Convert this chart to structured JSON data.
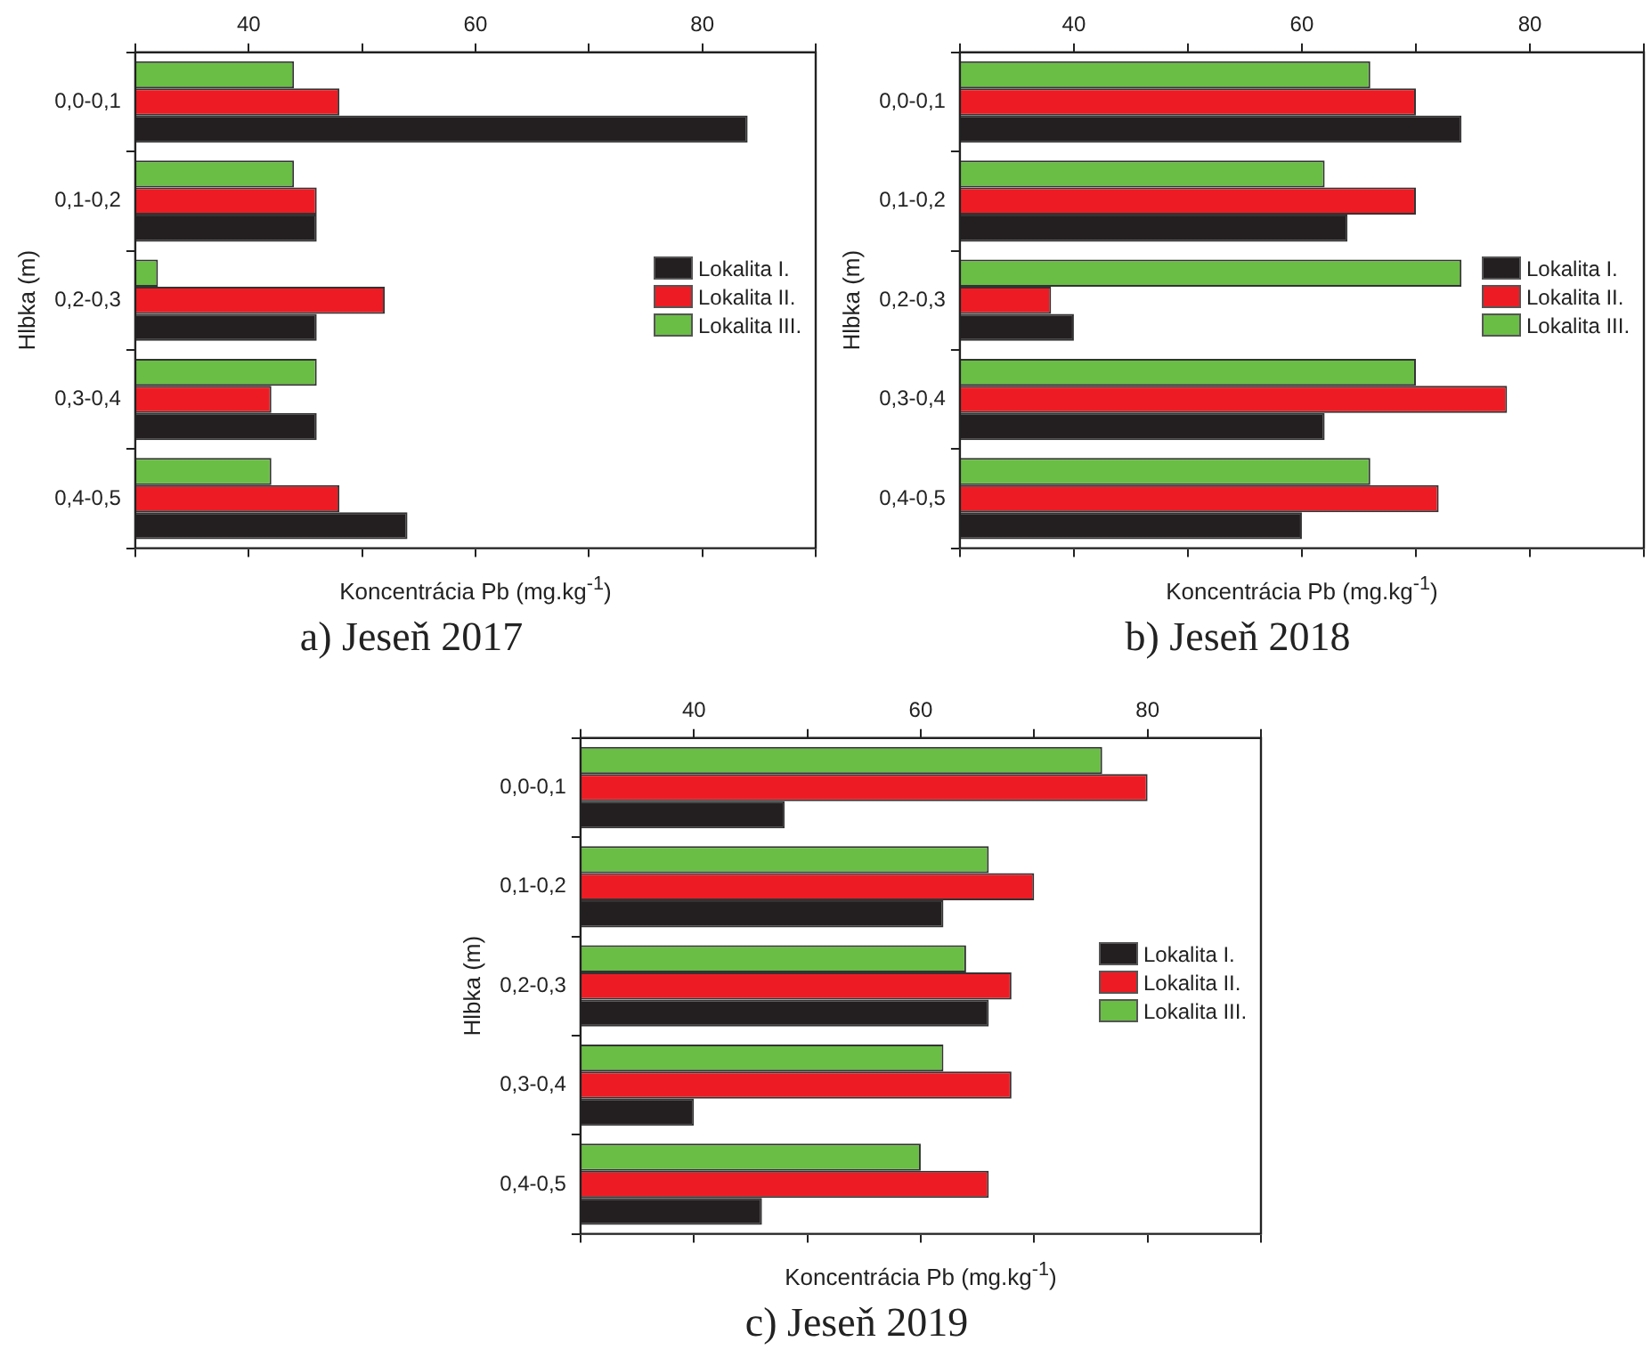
{
  "chart_data": [
    {
      "type": "bar",
      "orientation": "horizontal",
      "title": "a) Jeseň 2017",
      "xlabel": "Koncentrácia Pb (mg.kg$^{-1}$)",
      "ylabel": "Hlbka (m)",
      "categories": [
        "0,0-0,1",
        "0,1-0,2",
        "0,2-0,3",
        "0,3-0,4",
        "0,4-0,5"
      ],
      "series": [
        {
          "name": "Lokalita I.",
          "color": "#231f20",
          "values": [
            84,
            46,
            46,
            46,
            54
          ]
        },
        {
          "name": "Lokalita II.",
          "color": "#ed1c24",
          "values": [
            48,
            46,
            52,
            42,
            48
          ]
        },
        {
          "name": "Lokalita III.",
          "color": "#6abd45",
          "values": [
            44,
            44,
            32,
            46,
            42
          ]
        }
      ],
      "xlim": [
        30,
        90
      ],
      "xticks": [
        {
          "value": 30,
          "label": null
        },
        40,
        {
          "value": 50,
          "label": null
        },
        60,
        {
          "value": 70,
          "label": null
        },
        80,
        {
          "value": 90,
          "label": null
        }
      ],
      "grid": false,
      "legend": "right"
    },
    {
      "type": "bar",
      "orientation": "horizontal",
      "title": "b) Jeseň 2018",
      "xlabel": "Koncentrácia Pb (mg.kg$^{-1}$)",
      "ylabel": "Hlbka (m)",
      "categories": [
        "0,0-0,1",
        "0,1-0,2",
        "0,2-0,3",
        "0,3-0,4",
        "0,4-0,5"
      ],
      "series": [
        {
          "name": "Lokalita I.",
          "color": "#231f20",
          "values": [
            74,
            64,
            40,
            62,
            60
          ]
        },
        {
          "name": "Lokalita II.",
          "color": "#ed1c24",
          "values": [
            70,
            70,
            38,
            78,
            72
          ]
        },
        {
          "name": "Lokalita III.",
          "color": "#6abd45",
          "values": [
            66,
            62,
            74,
            70,
            66
          ]
        }
      ],
      "xlim": [
        30,
        90
      ],
      "xticks": [
        {
          "value": 30,
          "label": null
        },
        40,
        {
          "value": 50,
          "label": null
        },
        60,
        {
          "value": 70,
          "label": null
        },
        80,
        {
          "value": 90,
          "label": null
        }
      ],
      "grid": false,
      "legend": "right"
    },
    {
      "type": "bar",
      "orientation": "horizontal",
      "title": "c) Jeseň 2019",
      "xlabel": "Koncentrácia Pb (mg.kg$^{-1}$)",
      "ylabel": "Hlbka (m)",
      "categories": [
        "0,0-0,1",
        "0,1-0,2",
        "0,2-0,3",
        "0,3-0,4",
        "0,4-0,5"
      ],
      "series": [
        {
          "name": "Lokalita I.",
          "color": "#231f20",
          "values": [
            48,
            62,
            66,
            40,
            46
          ]
        },
        {
          "name": "Lokalita II.",
          "color": "#ed1c24",
          "values": [
            80,
            70,
            68,
            68,
            66
          ]
        },
        {
          "name": "Lokalita III.",
          "color": "#6abd45",
          "values": [
            76,
            66,
            64,
            62,
            60
          ]
        }
      ],
      "xlim": [
        30,
        90
      ],
      "xticks": [
        {
          "value": 30,
          "label": null
        },
        40,
        {
          "value": 50,
          "label": null
        },
        60,
        {
          "value": 70,
          "label": null
        },
        80,
        {
          "value": 90,
          "label": null
        }
      ],
      "grid": false,
      "legend": "right"
    }
  ]
}
